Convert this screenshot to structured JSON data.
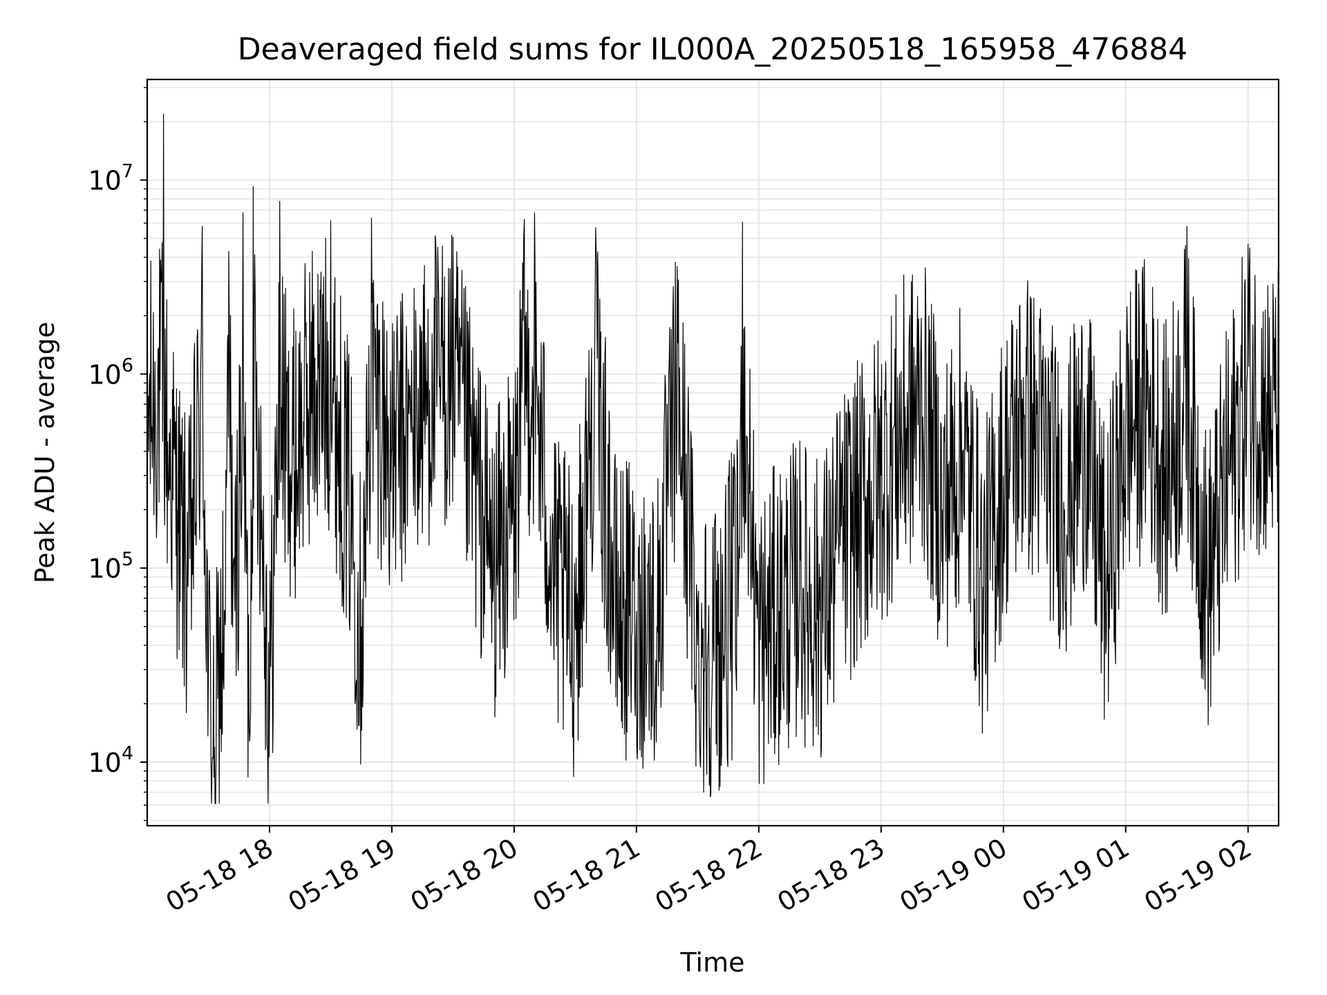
{
  "chart_data": {
    "type": "line",
    "title": "Deaveraged field sums for IL000A_20250518_165958_476884",
    "xlabel": "Time",
    "ylabel": "Peak ADU - average",
    "yscale": "log",
    "ylim": [
      4700,
      33000000
    ],
    "xlim": [
      "05-18 17:00",
      "05-19 02:15"
    ],
    "grid": true,
    "line_color": "#000000",
    "grid_color": "#e6e6e6",
    "x_ticks": [
      "05-18 18",
      "05-18 19",
      "05-18 20",
      "05-18 21",
      "05-18 22",
      "05-18 23",
      "05-19 00",
      "05-19 01",
      "05-19 02"
    ],
    "y_ticks": [
      {
        "base": "10",
        "exp": "4",
        "value": 10000
      },
      {
        "base": "10",
        "exp": "5",
        "value": 100000
      },
      {
        "base": "10",
        "exp": "6",
        "value": 1000000
      },
      {
        "base": "10",
        "exp": "7",
        "value": 10000000
      }
    ],
    "series": [
      {
        "x": [
          "05-18 17:00",
          "05-18 17:08",
          "05-18 17:10",
          "05-18 17:15",
          "05-18 17:20",
          "05-18 17:27",
          "05-18 17:30",
          "05-18 17:33",
          "05-18 17:38",
          "05-18 17:40",
          "05-18 17:43",
          "05-18 17:47",
          "05-18 17:50",
          "05-18 17:52",
          "05-18 17:55",
          "05-18 18:00",
          "05-18 18:05",
          "05-18 18:10",
          "05-18 18:20",
          "05-18 18:30",
          "05-18 18:40",
          "05-18 18:45",
          "05-18 18:50",
          "05-18 19:00",
          "05-18 19:10",
          "05-18 19:20",
          "05-18 19:30",
          "05-18 19:40",
          "05-18 19:50",
          "05-18 20:00",
          "05-18 20:05",
          "05-18 20:10",
          "05-18 20:20",
          "05-18 20:30",
          "05-18 20:40",
          "05-18 20:50",
          "05-18 21:00",
          "05-18 21:10",
          "05-18 21:20",
          "05-18 21:30",
          "05-18 21:40",
          "05-18 21:50",
          "05-18 21:52",
          "05-18 22:00",
          "05-18 22:10",
          "05-18 22:20",
          "05-18 22:30",
          "05-18 22:40",
          "05-18 22:50",
          "05-18 23:00",
          "05-18 23:10",
          "05-18 23:20",
          "05-18 23:30",
          "05-18 23:40",
          "05-18 23:50",
          "05-19 00:00",
          "05-19 00:10",
          "05-19 00:20",
          "05-19 00:30",
          "05-19 00:40",
          "05-19 00:50",
          "05-19 01:00",
          "05-19 01:10",
          "05-19 01:20",
          "05-19 01:30",
          "05-19 01:40",
          "05-19 01:50",
          "05-19 02:00",
          "05-19 02:10"
        ],
        "y": [
          600000,
          22000000,
          450000,
          200000,
          80000,
          5800000,
          30000,
          12000,
          60000,
          4300000,
          60000,
          6800000,
          15000,
          9300000,
          400000,
          20000,
          7800000,
          300000,
          800000,
          6200000,
          200000,
          50000,
          6400000,
          400000,
          500000,
          900000,
          5100000,
          300000,
          100000,
          200000,
          6300000,
          6800000,
          80000,
          50000,
          5700000,
          60000,
          60000,
          50000,
          3600000,
          40000,
          40000,
          80000,
          6100000,
          40000,
          60000,
          80000,
          60000,
          130000,
          200000,
          300000,
          500000,
          700000,
          200000,
          400000,
          80000,
          300000,
          600000,
          400000,
          200000,
          500000,
          80000,
          500000,
          700000,
          300000,
          5800000,
          80000,
          300000,
          4700000,
          600000
        ]
      }
    ]
  }
}
